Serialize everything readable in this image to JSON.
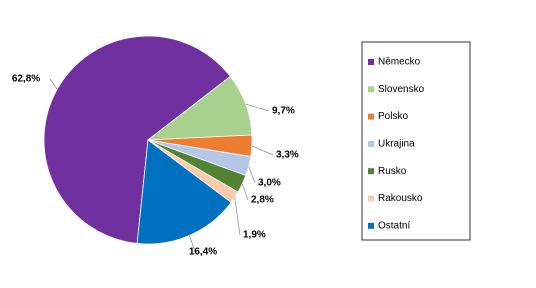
{
  "chart_data": {
    "type": "pie",
    "categories": [
      "Německo",
      "Slovensko",
      "Polsko",
      "Ukrajina",
      "Rusko",
      "Rakousko",
      "Ostatní"
    ],
    "values": [
      62.8,
      9.7,
      3.3,
      3.0,
      2.8,
      1.9,
      16.4
    ],
    "value_labels": [
      "62,8%",
      "9,7%",
      "3,3%",
      "3,0%",
      "2,8%",
      "1,9%",
      "16,4%"
    ],
    "colors": [
      "#7030a0",
      "#a9d18e",
      "#ed7d31",
      "#b4c7e7",
      "#548235",
      "#f8cbad",
      "#0070c0"
    ],
    "legend": "right"
  }
}
